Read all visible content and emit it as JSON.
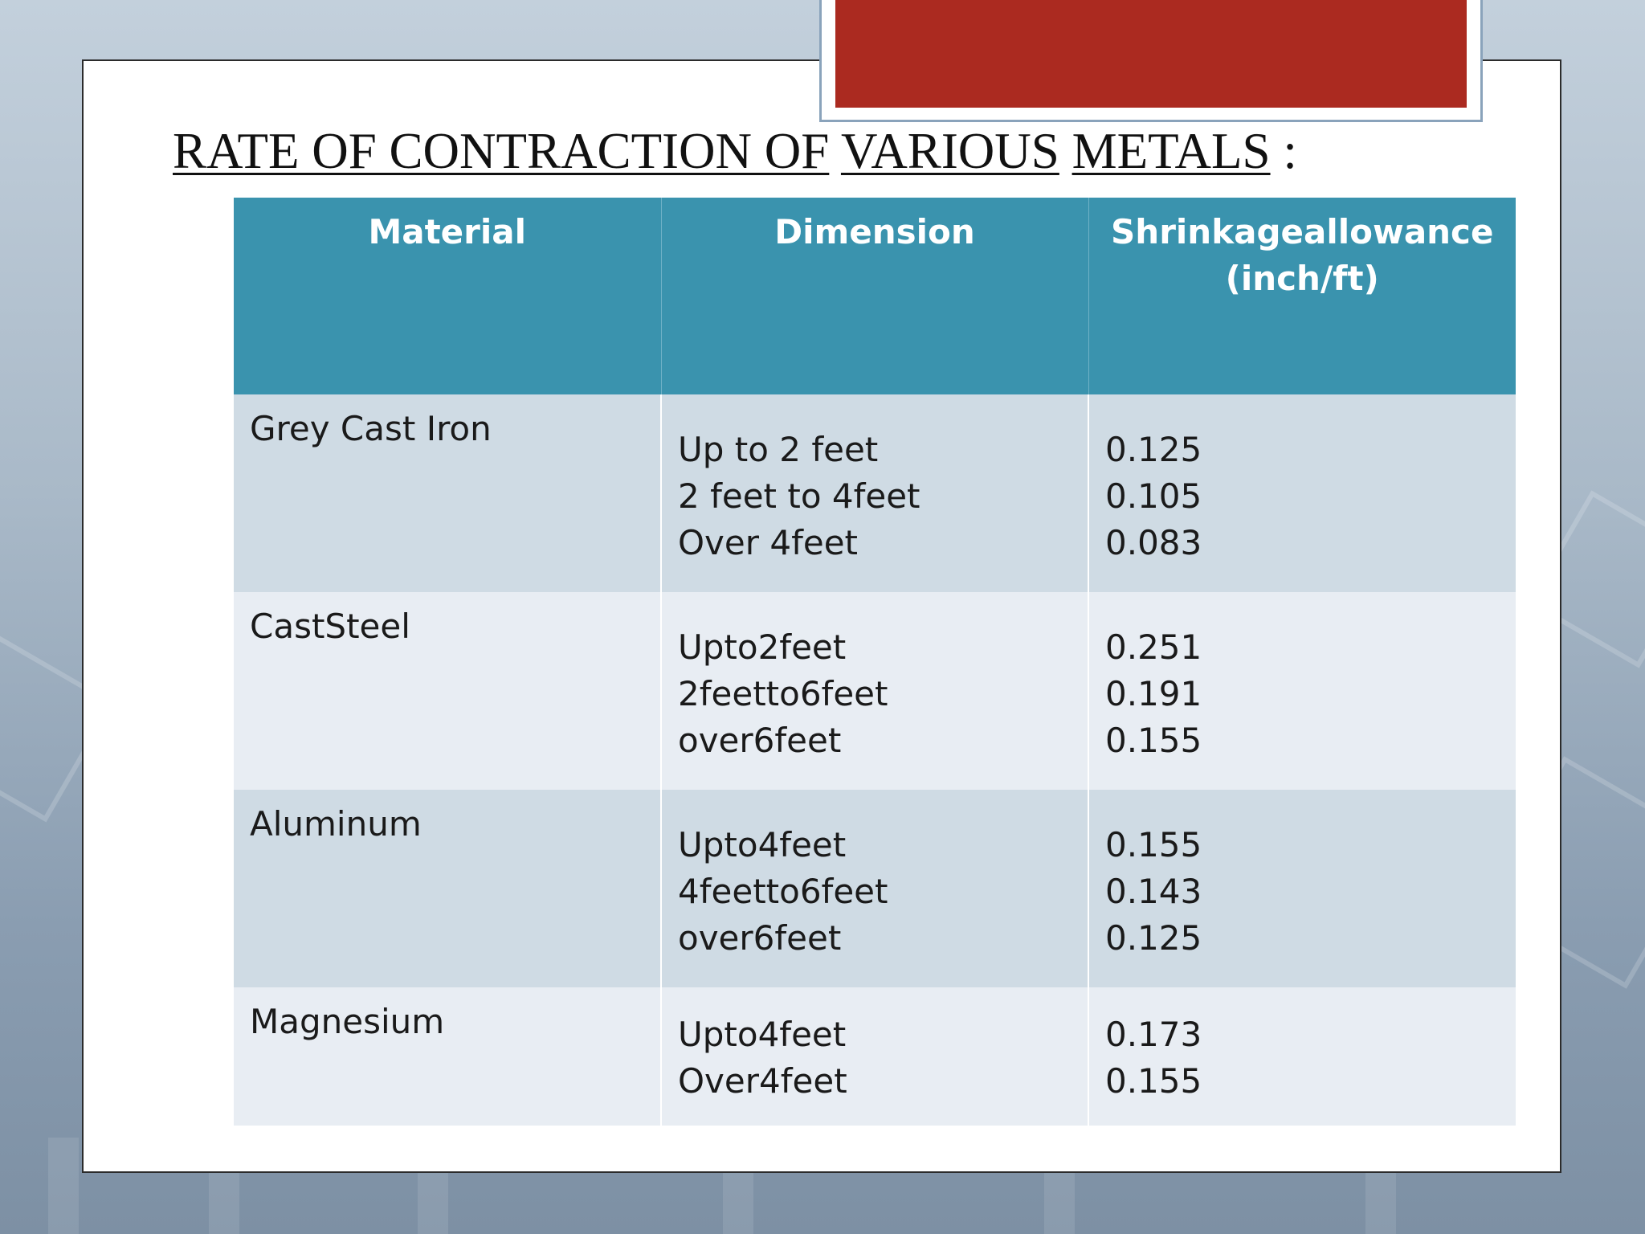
{
  "title": {
    "parts": [
      "RATE OF CONTRACTION OF",
      "VARIOUS",
      "METALS",
      ":"
    ]
  },
  "table": {
    "headers": [
      "Material",
      "Dimension",
      "Shrinkageallowance (inch/ft)"
    ],
    "rows": [
      {
        "material": "Grey Cast Iron",
        "dimensions": [
          "Up to 2 feet",
          "2 feet to 4feet",
          "Over 4feet"
        ],
        "values": [
          "0.125",
          "0.105",
          "0.083"
        ]
      },
      {
        "material": "CastSteel",
        "dimensions": [
          "Upto2feet",
          "2feetto6feet",
          "over6feet"
        ],
        "values": [
          "0.251",
          "0.191",
          "0.155"
        ]
      },
      {
        "material": "Aluminum",
        "dimensions": [
          "Upto4feet",
          "4feetto6feet",
          "over6feet"
        ],
        "values": [
          "0.155",
          "0.143",
          "0.125"
        ]
      },
      {
        "material": "Magnesium",
        "dimensions": [
          "Upto4feet",
          "Over4feet"
        ],
        "values": [
          "0.173",
          "0.155"
        ]
      }
    ]
  },
  "colors": {
    "header_bg": "#3a93ae",
    "row_odd_bg": "#cfdbe4",
    "row_even_bg": "#e8edf3",
    "accent_red": "#ab2a20"
  }
}
